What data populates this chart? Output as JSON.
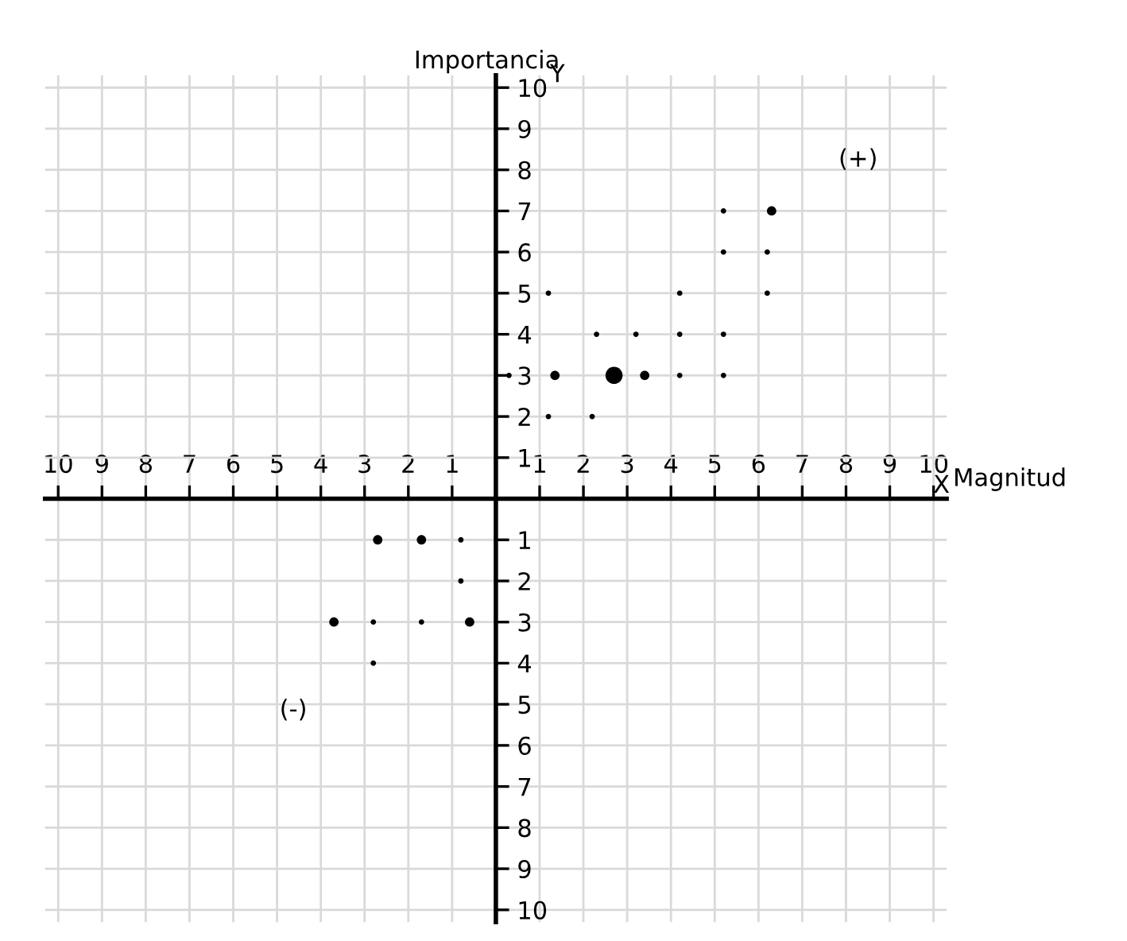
{
  "chart_data": {
    "type": "bubble",
    "xlabel": "Magnitud",
    "ylabel": "Importancia",
    "annotations": [
      "X",
      "Y",
      "(+)",
      "(-)"
    ],
    "x": [
      0.3,
      1.35,
      2.7,
      3.4,
      4.2,
      5.2,
      1.2,
      2.3,
      3.2,
      4.2,
      4.2,
      5.2,
      6.2,
      5.2,
      6.2,
      5.2,
      6.3,
      1.2,
      2.2,
      -2.7,
      -1.7,
      -0.8,
      -0.8,
      -3.7,
      -2.8,
      -1.7,
      -0.6,
      -2.8
    ],
    "values": [
      3,
      3,
      3,
      3,
      3,
      3,
      5,
      4,
      4,
      5,
      4,
      4,
      5,
      6,
      6,
      7,
      7,
      2,
      2,
      -1,
      -1,
      -1,
      -2,
      -3,
      -3,
      -3,
      -3,
      -4
    ],
    "sizes": [
      0.1,
      0.3,
      1,
      0.3,
      0.1,
      0.1,
      0.1,
      0.1,
      0.1,
      0.1,
      0.1,
      0.1,
      0.1,
      0.1,
      0.1,
      0.1,
      0.3,
      0.1,
      0.1,
      0.3,
      0.3,
      0.1,
      0.1,
      0.3,
      0.1,
      0.1,
      0.3,
      0.1
    ],
    "color": "#000000",
    "xlim": [
      -10.3,
      10.3
    ],
    "ylim": [
      -10.3,
      10.3
    ],
    "xticks": [
      {
        "value": -10,
        "label": "10"
      },
      {
        "value": -9,
        "label": "9"
      },
      {
        "value": -8,
        "label": "8"
      },
      {
        "value": -7,
        "label": "7"
      },
      {
        "value": -6,
        "label": "6"
      },
      {
        "value": -5,
        "label": "5"
      },
      {
        "value": -4,
        "label": "4"
      },
      {
        "value": -3,
        "label": "3"
      },
      {
        "value": -2,
        "label": "2"
      },
      {
        "value": -1,
        "label": "1"
      },
      1,
      2,
      3,
      4,
      5,
      6,
      7,
      8,
      9,
      10
    ],
    "yticks": [
      {
        "value": -10,
        "label": "10"
      },
      {
        "value": -9,
        "label": "9"
      },
      {
        "value": -8,
        "label": "8"
      },
      {
        "value": -7,
        "label": "7"
      },
      {
        "value": -6,
        "label": "6"
      },
      {
        "value": -5,
        "label": "5"
      },
      {
        "value": -4,
        "label": "4"
      },
      {
        "value": -3,
        "label": "3"
      },
      {
        "value": -2,
        "label": "2"
      },
      {
        "value": -1,
        "label": "1"
      },
      1,
      2,
      3,
      4,
      5,
      6,
      7,
      8,
      9,
      10
    ],
    "grid": true
  }
}
